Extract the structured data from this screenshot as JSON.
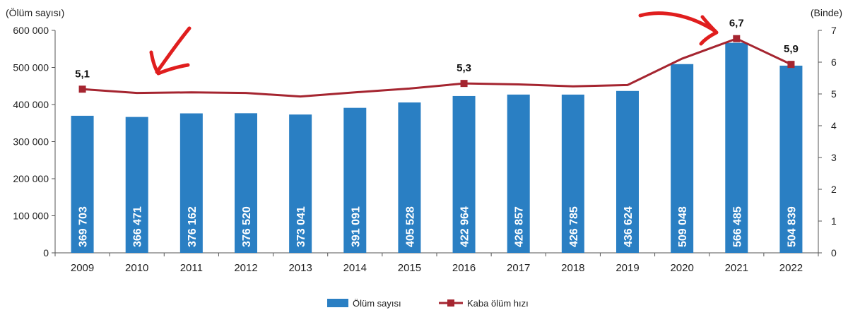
{
  "chart_data": {
    "type": "bar",
    "categories": [
      "2009",
      "2010",
      "2011",
      "2012",
      "2013",
      "2014",
      "2015",
      "2016",
      "2017",
      "2018",
      "2019",
      "2020",
      "2021",
      "2022"
    ],
    "series": [
      {
        "name": "Ölüm sayısı",
        "type": "bar",
        "axis": "left",
        "values": [
          369703,
          366471,
          376162,
          376520,
          373041,
          391091,
          405528,
          422964,
          426857,
          426785,
          436624,
          509048,
          566485,
          504839
        ],
        "labels": [
          "369 703",
          "366 471",
          "376 162",
          "376 520",
          "373 041",
          "391 091",
          "405 528",
          "422 964",
          "426 857",
          "426 785",
          "436 624",
          "509 048",
          "566 485",
          "504 839"
        ]
      },
      {
        "name": "Kaba ölüm hızı",
        "type": "line",
        "axis": "right",
        "values": [
          5.15,
          5.03,
          5.05,
          5.03,
          4.92,
          5.05,
          5.17,
          5.33,
          5.3,
          5.24,
          5.28,
          6.11,
          6.74,
          5.93
        ]
      }
    ],
    "point_labels": [
      {
        "index": 0,
        "text": "5,1"
      },
      {
        "index": 7,
        "text": "5,3"
      },
      {
        "index": 12,
        "text": "6,7"
      },
      {
        "index": 13,
        "text": "5,9"
      }
    ],
    "left_axis": {
      "unit": "(Ölüm sayısı)",
      "ylim": [
        0,
        600000
      ],
      "ticks": [
        0,
        100000,
        200000,
        300000,
        400000,
        500000,
        600000
      ],
      "tick_labels": [
        "0",
        "100 000",
        "200 000",
        "300 000",
        "400 000",
        "500 000",
        "600 000"
      ]
    },
    "right_axis": {
      "unit": "(Binde)",
      "ylim": [
        0,
        7
      ],
      "ticks": [
        0,
        1,
        2,
        3,
        4,
        5,
        6,
        7
      ],
      "tick_labels": [
        "0",
        "1",
        "2",
        "3",
        "4",
        "5",
        "6",
        "7"
      ]
    },
    "grid": false,
    "legend": "bottom-center",
    "colors": {
      "bar": "#2a7fc3",
      "line": "#a52530",
      "annotation": "#e01e1e"
    },
    "annotations": [
      "red hand-drawn arrow pointing down-left toward the 2010 line segment",
      "red hand-drawn arrow pointing right toward the 2021 peak"
    ]
  }
}
